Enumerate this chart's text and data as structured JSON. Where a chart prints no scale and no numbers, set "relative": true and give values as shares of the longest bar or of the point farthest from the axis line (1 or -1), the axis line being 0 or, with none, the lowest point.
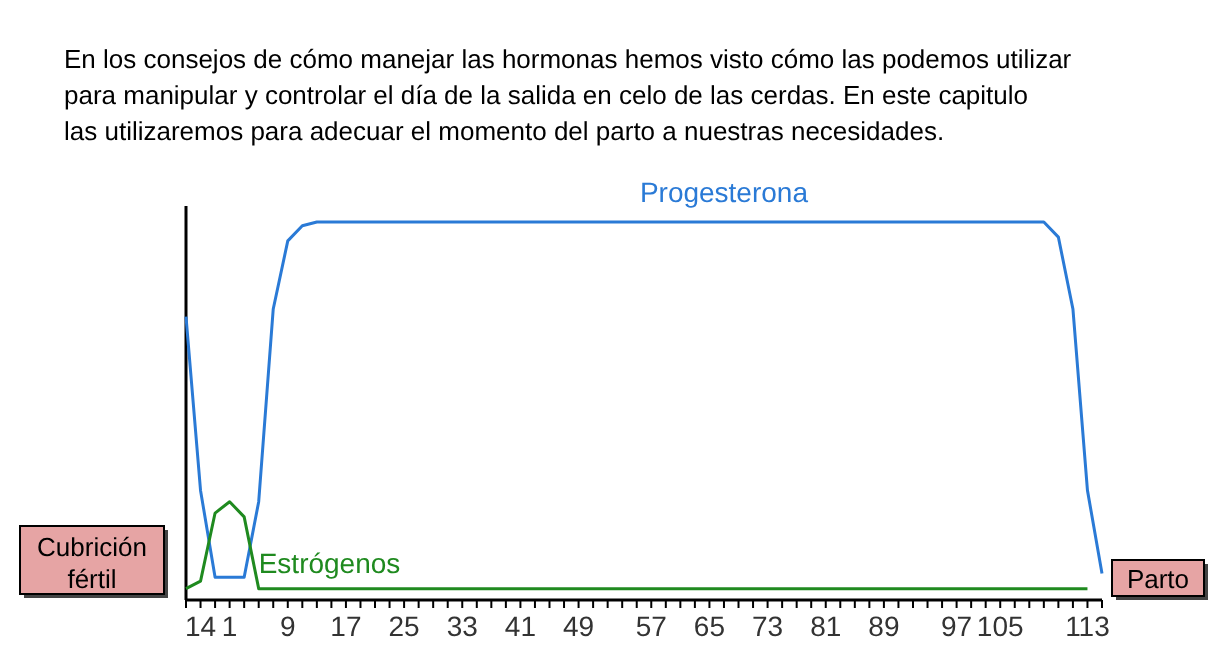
{
  "chart_data": {
    "type": "line",
    "relative": true,
    "title": "En los consejos de cómo manejar las hormonas hemos visto cómo las podemos utilizar para manipular y controlar el día de la salida en celo de las cerdas. En este capitulo las utilizaremos para adecuar el momento del parto a nuestras necesidades.",
    "categories": [
      null,
      "14",
      null,
      "1",
      null,
      null,
      null,
      "9",
      null,
      null,
      null,
      "17",
      null,
      null,
      null,
      "25",
      null,
      null,
      null,
      "33",
      null,
      null,
      null,
      "41",
      null,
      null,
      null,
      "49",
      null,
      null,
      null,
      null,
      "57",
      null,
      null,
      null,
      "65",
      null,
      null,
      null,
      "73",
      null,
      null,
      null,
      "81",
      null,
      null,
      null,
      "89",
      null,
      null,
      null,
      null,
      "97",
      null,
      null,
      "105",
      null,
      null,
      null,
      null,
      null,
      "113",
      null
    ],
    "series": [
      {
        "name": "Progesterona",
        "color": "#2a7ad6",
        "values": [
          0.75,
          0.29,
          0.06,
          0.06,
          0.06,
          0.26,
          0.77,
          0.95,
          0.99,
          1,
          1,
          1,
          1,
          1,
          1,
          1,
          1,
          1,
          1,
          1,
          1,
          1,
          1,
          1,
          1,
          1,
          1,
          1,
          1,
          1,
          1,
          1,
          1,
          1,
          1,
          1,
          1,
          1,
          1,
          1,
          1,
          1,
          1,
          1,
          1,
          1,
          1,
          1,
          1,
          1,
          1,
          1,
          1,
          1,
          1,
          1,
          1,
          1,
          1,
          1,
          0.96,
          0.77,
          0.29,
          0.07
        ]
      },
      {
        "name": "Estrógenos",
        "color": "#1f8a1f",
        "values": [
          0.03,
          0.05,
          0.23,
          0.26,
          0.22,
          0.03,
          0.03,
          0.03,
          0.03,
          0.03,
          0.03,
          0.03,
          0.03,
          0.03,
          0.03,
          0.03,
          0.03,
          0.03,
          0.03,
          0.03,
          0.03,
          0.03,
          0.03,
          0.03,
          0.03,
          0.03,
          0.03,
          0.03,
          0.03,
          0.03,
          0.03,
          0.03,
          0.03,
          0.03,
          0.03,
          0.03,
          0.03,
          0.03,
          0.03,
          0.03,
          0.03,
          0.03,
          0.03,
          0.03,
          0.03,
          0.03,
          0.03,
          0.03,
          0.03,
          0.03,
          0.03,
          0.03,
          0.03,
          0.03,
          0.03,
          0.03,
          0.03,
          0.03,
          0.03,
          0.03,
          0.03,
          0.03,
          0.03,
          null
        ]
      }
    ],
    "annotations": [
      "Cubrición fértil",
      "Parto"
    ],
    "grid": false
  }
}
